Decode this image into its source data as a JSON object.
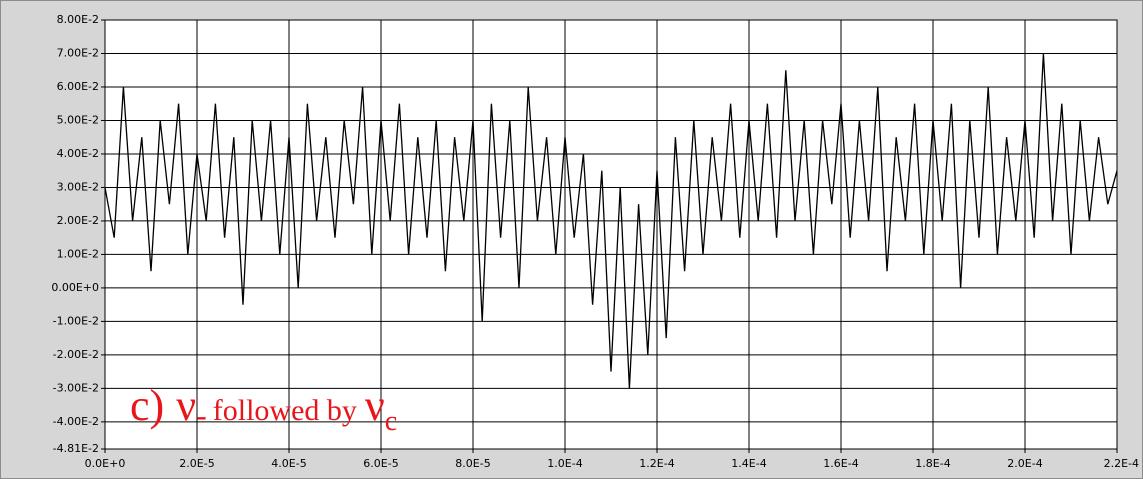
{
  "chart_data": {
    "type": "line",
    "x": [
      0,
      2e-06,
      4e-06,
      6e-06,
      8e-06,
      1e-05,
      1.2e-05,
      1.4e-05,
      1.6e-05,
      1.8e-05,
      2e-05,
      2.2e-05,
      2.4e-05,
      2.6e-05,
      2.8e-05,
      3e-05,
      3.2e-05,
      3.4e-05,
      3.6e-05,
      3.8e-05,
      4e-05,
      4.2e-05,
      4.4e-05,
      4.6e-05,
      4.8e-05,
      5e-05,
      5.2e-05,
      5.4e-05,
      5.6e-05,
      5.8e-05,
      6e-05,
      6.2e-05,
      6.4e-05,
      6.6e-05,
      6.8e-05,
      7e-05,
      7.2e-05,
      7.4e-05,
      7.6e-05,
      7.8e-05,
      8e-05,
      8.2e-05,
      8.4e-05,
      8.6e-05,
      8.8e-05,
      9e-05,
      9.2e-05,
      9.4e-05,
      9.6e-05,
      9.8e-05,
      0.0001,
      0.000102,
      0.000104,
      0.000106,
      0.000108,
      0.00011,
      0.000112,
      0.000114,
      0.000116,
      0.000118,
      0.00012,
      0.000122,
      0.000124,
      0.000126,
      0.000128,
      0.00013,
      0.000132,
      0.000134,
      0.000136,
      0.000138,
      0.00014,
      0.000142,
      0.000144,
      0.000146,
      0.000148,
      0.00015,
      0.000152,
      0.000154,
      0.000156,
      0.000158,
      0.00016,
      0.000162,
      0.000164,
      0.000166,
      0.000168,
      0.00017,
      0.000172,
      0.000174,
      0.000176,
      0.000178,
      0.00018,
      0.000182,
      0.000184,
      0.000186,
      0.000188,
      0.00019,
      0.000192,
      0.000194,
      0.000196,
      0.000198,
      0.0002,
      0.000202,
      0.000204,
      0.000206,
      0.000208,
      0.00021,
      0.000212,
      0.000214,
      0.000216,
      0.000218,
      0.00022
    ],
    "series": [
      {
        "color": "#000000",
        "values": [
          0.03,
          0.015,
          0.06,
          0.02,
          0.045,
          0.005,
          0.05,
          0.025,
          0.055,
          0.01,
          0.04,
          0.02,
          0.055,
          0.015,
          0.045,
          -0.005,
          0.05,
          0.02,
          0.05,
          0.01,
          0.045,
          0.0,
          0.055,
          0.02,
          0.045,
          0.015,
          0.05,
          0.025,
          0.06,
          0.01,
          0.05,
          0.02,
          0.055,
          0.01,
          0.045,
          0.015,
          0.05,
          0.005,
          0.045,
          0.02,
          0.05,
          -0.01,
          0.055,
          0.015,
          0.05,
          0.0,
          0.06,
          0.02,
          0.045,
          0.01,
          0.045,
          0.015,
          0.04,
          -0.005,
          0.035,
          -0.025,
          0.03,
          -0.03,
          0.025,
          -0.02,
          0.035,
          -0.015,
          0.045,
          0.005,
          0.05,
          0.01,
          0.045,
          0.02,
          0.055,
          0.015,
          0.05,
          0.02,
          0.055,
          0.015,
          0.065,
          0.02,
          0.05,
          0.01,
          0.05,
          0.025,
          0.055,
          0.015,
          0.05,
          0.02,
          0.06,
          0.005,
          0.045,
          0.02,
          0.055,
          0.01,
          0.05,
          0.02,
          0.055,
          0.0,
          0.05,
          0.015,
          0.06,
          0.01,
          0.045,
          0.02,
          0.05,
          0.015,
          0.07,
          0.02,
          0.055,
          0.01,
          0.05,
          0.02,
          0.045,
          0.025,
          0.035
        ]
      }
    ],
    "xlim": [
      0,
      0.00022
    ],
    "ylim": [
      -0.0481,
      0.08
    ],
    "xticks": [
      {
        "value": 0,
        "label": "0.0E+0"
      },
      {
        "value": 2e-05,
        "label": "2.0E-5"
      },
      {
        "value": 4e-05,
        "label": "4.0E-5"
      },
      {
        "value": 6e-05,
        "label": "6.0E-5"
      },
      {
        "value": 8e-05,
        "label": "8.0E-5"
      },
      {
        "value": 0.0001,
        "label": "1.0E-4"
      },
      {
        "value": 0.00012,
        "label": "1.2E-4"
      },
      {
        "value": 0.00014,
        "label": "1.4E-4"
      },
      {
        "value": 0.00016,
        "label": "1.6E-4"
      },
      {
        "value": 0.00018,
        "label": "1.8E-4"
      },
      {
        "value": 0.0002,
        "label": "2.0E-4"
      },
      {
        "value": 0.00022,
        "label": "2.2E-4"
      }
    ],
    "yticks": [
      {
        "value": 0.08,
        "label": "8.00E-2"
      },
      {
        "value": 0.07,
        "label": "7.00E-2"
      },
      {
        "value": 0.06,
        "label": "6.00E-2"
      },
      {
        "value": 0.05,
        "label": "5.00E-2"
      },
      {
        "value": 0.04,
        "label": "4.00E-2"
      },
      {
        "value": 0.03,
        "label": "3.00E-2"
      },
      {
        "value": 0.02,
        "label": "2.00E-2"
      },
      {
        "value": 0.01,
        "label": "1.00E-2"
      },
      {
        "value": 0,
        "label": "0.00E+0"
      },
      {
        "value": -0.01,
        "label": "-1.00E-2"
      },
      {
        "value": -0.02,
        "label": "-2.00E-2"
      },
      {
        "value": -0.03,
        "label": "-3.00E-2"
      },
      {
        "value": -0.04,
        "label": "-4.00E-2"
      },
      {
        "value": -0.0481,
        "label": "-4.81E-2"
      }
    ],
    "grid": true,
    "annotation": {
      "prefix": "c)",
      "symbol1": "ν",
      "sub1": "-",
      "middle": "followed by",
      "symbol2": "ν",
      "sub2": "c"
    }
  }
}
